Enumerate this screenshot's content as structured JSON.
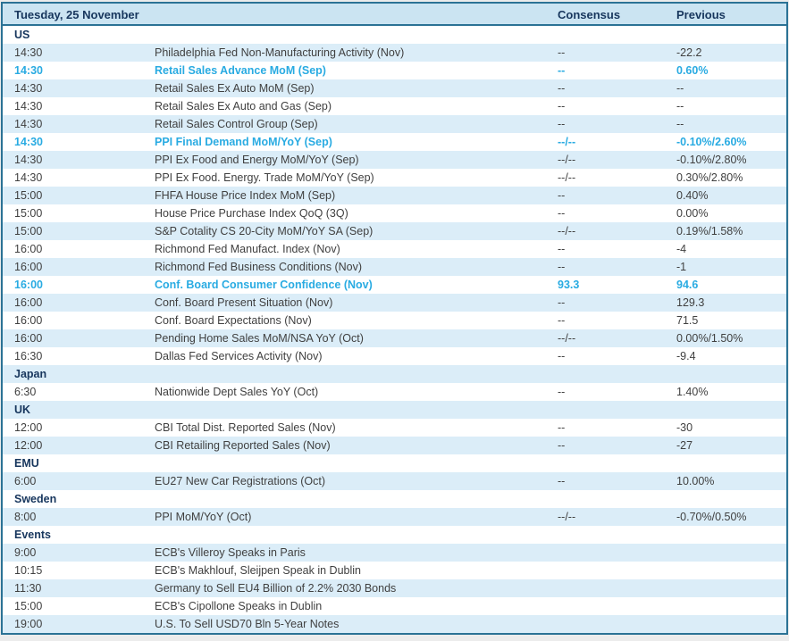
{
  "table": {
    "header": {
      "date": "Tuesday, 25 November",
      "consensus": "Consensus",
      "previous": "Previous"
    },
    "colors": {
      "border": "#2b7295",
      "header_bg": "#cbe4f2",
      "alt_row_bg": "#dbedf8",
      "header_text": "#17365d",
      "body_text": "#404040",
      "highlight_text": "#29abe2"
    },
    "rows": [
      {
        "type": "section",
        "label": "US"
      },
      {
        "type": "data",
        "time": "14:30",
        "event": "Philadelphia Fed Non-Manufacturing Activity (Nov)",
        "consensus": "--",
        "previous": "-22.2",
        "highlight": false
      },
      {
        "type": "data",
        "time": "14:30",
        "event": "Retail Sales Advance MoM (Sep)",
        "consensus": "--",
        "previous": "0.60%",
        "highlight": true
      },
      {
        "type": "data",
        "time": "14:30",
        "event": "Retail Sales Ex Auto MoM (Sep)",
        "consensus": "--",
        "previous": "--",
        "highlight": false
      },
      {
        "type": "data",
        "time": "14:30",
        "event": "Retail Sales Ex Auto and Gas (Sep)",
        "consensus": "--",
        "previous": "--",
        "highlight": false
      },
      {
        "type": "data",
        "time": "14:30",
        "event": "Retail Sales Control Group (Sep)",
        "consensus": "--",
        "previous": "--",
        "highlight": false
      },
      {
        "type": "data",
        "time": "14:30",
        "event": "PPI Final Demand MoM/YoY (Sep)",
        "consensus": "--/--",
        "previous": "-0.10%/2.60%",
        "highlight": true
      },
      {
        "type": "data",
        "time": "14:30",
        "event": "PPI Ex Food and Energy MoM/YoY (Sep)",
        "consensus": "--/--",
        "previous": "-0.10%/2.80%",
        "highlight": false
      },
      {
        "type": "data",
        "time": "14:30",
        "event": "PPI Ex Food. Energy. Trade MoM/YoY (Sep)",
        "consensus": "--/--",
        "previous": "0.30%/2.80%",
        "highlight": false
      },
      {
        "type": "data",
        "time": "15:00",
        "event": "FHFA House Price Index MoM (Sep)",
        "consensus": "--",
        "previous": "0.40%",
        "highlight": false
      },
      {
        "type": "data",
        "time": "15:00",
        "event": "House Price Purchase Index QoQ (3Q)",
        "consensus": "--",
        "previous": "0.00%",
        "highlight": false
      },
      {
        "type": "data",
        "time": "15:00",
        "event": "S&P Cotality CS 20-City MoM/YoY SA (Sep)",
        "consensus": "--/--",
        "previous": "0.19%/1.58%",
        "highlight": false
      },
      {
        "type": "data",
        "time": "16:00",
        "event": "Richmond Fed Manufact. Index (Nov)",
        "consensus": "--",
        "previous": "-4",
        "highlight": false
      },
      {
        "type": "data",
        "time": "16:00",
        "event": "Richmond Fed Business Conditions (Nov)",
        "consensus": "--",
        "previous": "-1",
        "highlight": false
      },
      {
        "type": "data",
        "time": "16:00",
        "event": "Conf. Board Consumer Confidence (Nov)",
        "consensus": "93.3",
        "previous": "94.6",
        "highlight": true
      },
      {
        "type": "data",
        "time": "16:00",
        "event": "Conf. Board Present Situation (Nov)",
        "consensus": "--",
        "previous": "129.3",
        "highlight": false
      },
      {
        "type": "data",
        "time": "16:00",
        "event": "Conf. Board Expectations (Nov)",
        "consensus": "--",
        "previous": "71.5",
        "highlight": false
      },
      {
        "type": "data",
        "time": "16:00",
        "event": "Pending Home Sales MoM/NSA YoY (Oct)",
        "consensus": "--/--",
        "previous": "0.00%/1.50%",
        "highlight": false
      },
      {
        "type": "data",
        "time": "16:30",
        "event": "Dallas Fed Services Activity (Nov)",
        "consensus": "--",
        "previous": "-9.4",
        "highlight": false
      },
      {
        "type": "section",
        "label": "Japan"
      },
      {
        "type": "data",
        "time": "6:30",
        "event": "Nationwide Dept Sales YoY (Oct)",
        "consensus": "--",
        "previous": "1.40%",
        "highlight": false
      },
      {
        "type": "section",
        "label": "UK"
      },
      {
        "type": "data",
        "time": "12:00",
        "event": "CBI Total Dist. Reported Sales (Nov)",
        "consensus": "--",
        "previous": "-30",
        "highlight": false
      },
      {
        "type": "data",
        "time": "12:00",
        "event": "CBI Retailing Reported Sales (Nov)",
        "consensus": "--",
        "previous": "-27",
        "highlight": false
      },
      {
        "type": "section",
        "label": "EMU"
      },
      {
        "type": "data",
        "time": "6:00",
        "event": "EU27 New Car Registrations (Oct)",
        "consensus": "--",
        "previous": "10.00%",
        "highlight": false
      },
      {
        "type": "section",
        "label": "Sweden"
      },
      {
        "type": "data",
        "time": "8:00",
        "event": "PPI MoM/YoY (Oct)",
        "consensus": "--/--",
        "previous": "-0.70%/0.50%",
        "highlight": false
      },
      {
        "type": "section",
        "label": "Events"
      },
      {
        "type": "data",
        "time": "9:00",
        "event": "ECB's Villeroy Speaks in Paris",
        "consensus": "",
        "previous": "",
        "highlight": false
      },
      {
        "type": "data",
        "time": "10:15",
        "event": "ECB's Makhlouf, Sleijpen Speak in Dublin",
        "consensus": "",
        "previous": "",
        "highlight": false
      },
      {
        "type": "data",
        "time": "11:30",
        "event": "Germany to Sell EU4 Billion of 2.2% 2030 Bonds",
        "consensus": "",
        "previous": "",
        "highlight": false
      },
      {
        "type": "data",
        "time": "15:00",
        "event": "ECB's Cipollone Speaks in Dublin",
        "consensus": "",
        "previous": "",
        "highlight": false
      },
      {
        "type": "data",
        "time": "19:00",
        "event": "U.S. To Sell USD70 Bln 5-Year Notes",
        "consensus": "",
        "previous": "",
        "highlight": false
      }
    ]
  }
}
